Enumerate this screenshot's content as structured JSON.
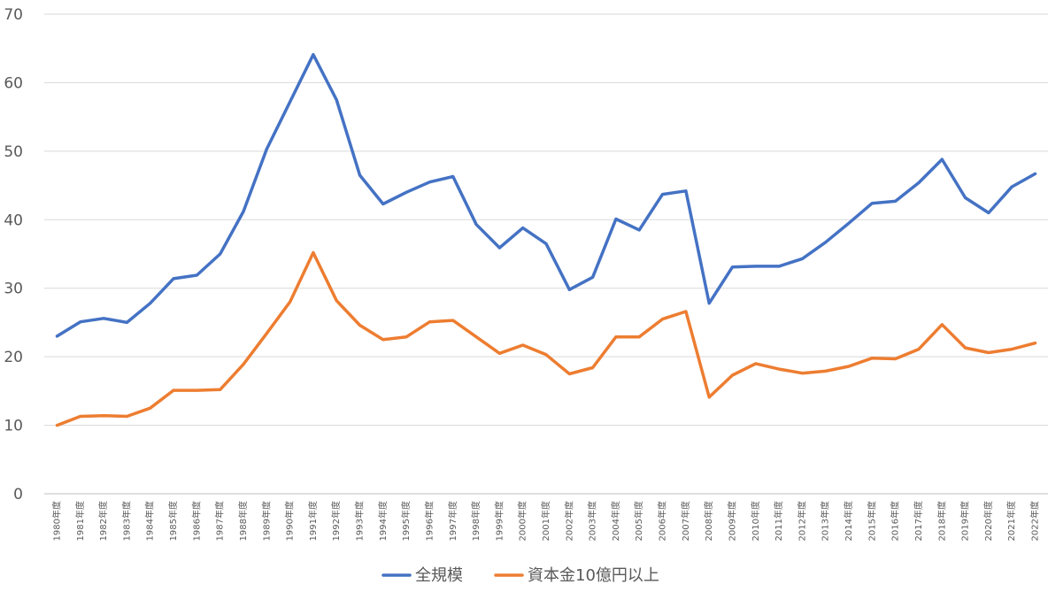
{
  "chart_data": {
    "type": "line",
    "title": "",
    "xlabel": "",
    "ylabel": "",
    "ylim": [
      0,
      70
    ],
    "yticks": [
      0,
      10,
      20,
      30,
      40,
      50,
      60,
      70
    ],
    "grid": true,
    "legend_position": "bottom",
    "categories": [
      "1980年度",
      "1981年度",
      "1982年度",
      "1983年度",
      "1984年度",
      "1985年度",
      "1986年度",
      "1987年度",
      "1988年度",
      "1989年度",
      "1990年度",
      "1991年度",
      "1992年度",
      "1993年度",
      "1994年度",
      "1995年度",
      "1996年度",
      "1997年度",
      "1998年度",
      "1999年度",
      "2000年度",
      "2001年度",
      "2002年度",
      "2003年度",
      "2004年度",
      "2005年度",
      "2006年度",
      "2007年度",
      "2008年度",
      "2009年度",
      "2010年度",
      "2011年度",
      "2012年度",
      "2013年度",
      "2014年度",
      "2015年度",
      "2016年度",
      "2017年度",
      "2018年度",
      "2019年度",
      "2020年度",
      "2021年度",
      "2022年度"
    ],
    "series": [
      {
        "name": "全規模",
        "color": "#4472c4",
        "values": [
          23.0,
          25.1,
          25.6,
          25.0,
          27.8,
          31.4,
          31.9,
          35.0,
          41.2,
          50.3,
          57.2,
          64.1,
          57.5,
          46.5,
          42.3,
          44.0,
          45.5,
          46.3,
          39.3,
          35.9,
          38.8,
          36.5,
          29.8,
          31.6,
          40.1,
          38.5,
          43.7,
          44.2,
          27.8,
          33.1,
          33.2,
          33.2,
          34.3,
          36.7,
          39.5,
          42.4,
          42.7,
          45.4,
          48.8,
          43.2,
          41.0,
          44.8,
          46.7
        ]
      },
      {
        "name": "資本金10億円以上",
        "color": "#ed7d31",
        "values": [
          10.0,
          11.3,
          11.4,
          11.3,
          12.5,
          15.1,
          15.1,
          15.2,
          18.9,
          23.4,
          28.0,
          35.2,
          28.2,
          24.6,
          22.5,
          22.9,
          25.1,
          25.3,
          22.9,
          20.5,
          21.7,
          20.3,
          17.5,
          18.4,
          22.9,
          22.9,
          25.5,
          26.6,
          14.1,
          17.3,
          19.0,
          18.2,
          17.6,
          17.9,
          18.6,
          19.8,
          19.7,
          21.1,
          24.7,
          21.3,
          20.6,
          21.1,
          22.0
        ]
      }
    ]
  }
}
